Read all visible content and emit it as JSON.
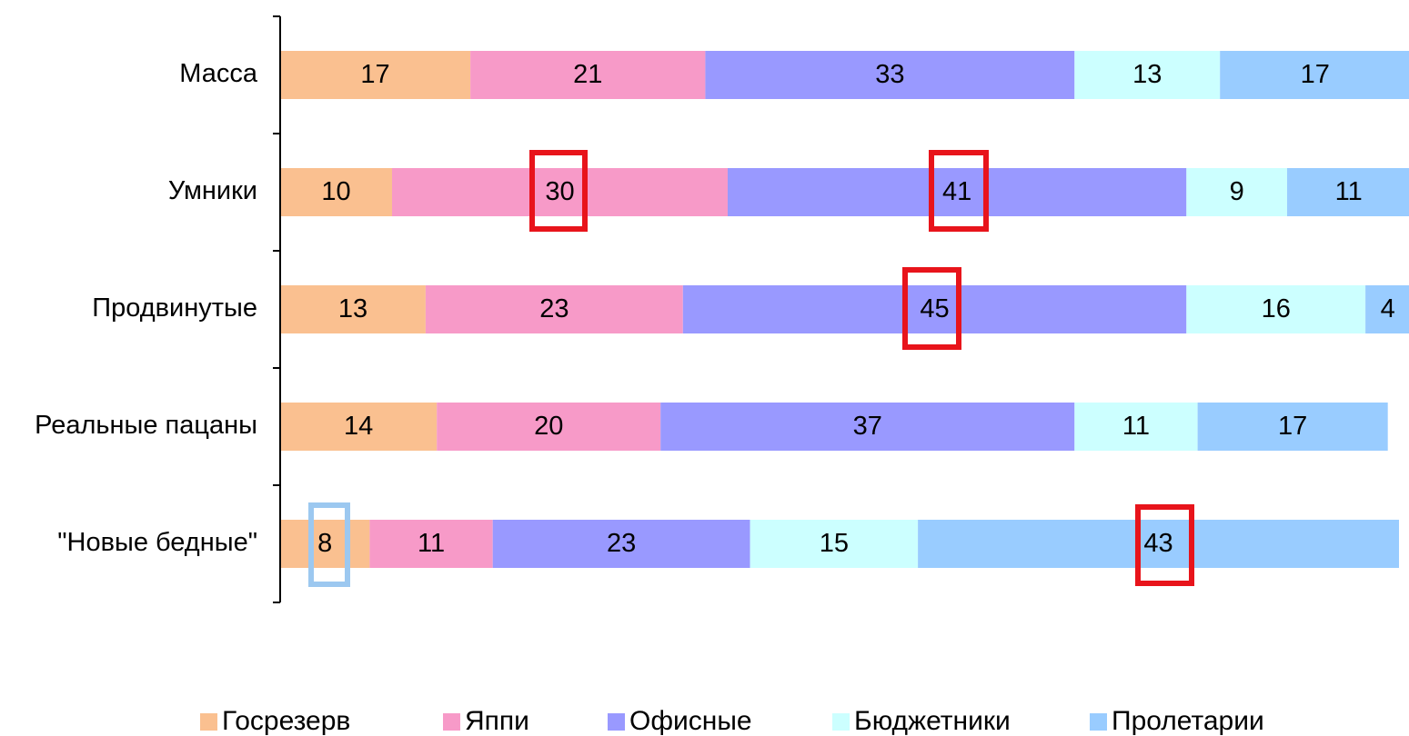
{
  "chart_data": {
    "type": "stacked_barh",
    "categories": [
      "Масса",
      "Умники",
      "Продвинутые",
      "Реальные пацаны",
      "\"Новые бедные\""
    ],
    "series": [
      {
        "name": "Госрезерв",
        "color": "#fac090",
        "values": [
          17,
          10,
          13,
          14,
          8
        ]
      },
      {
        "name": "Яппи",
        "color": "#f79ac8",
        "values": [
          21,
          30,
          23,
          20,
          11
        ]
      },
      {
        "name": "Офисные",
        "color": "#9999ff",
        "values": [
          33,
          41,
          45,
          37,
          23
        ]
      },
      {
        "name": "Бюджетники",
        "color": "#ccffff",
        "values": [
          13,
          9,
          16,
          11,
          15
        ]
      },
      {
        "name": "Пролетарии",
        "color": "#99ccff",
        "values": [
          17,
          11,
          4,
          17,
          43
        ]
      }
    ],
    "legend": "bottom"
  }
}
